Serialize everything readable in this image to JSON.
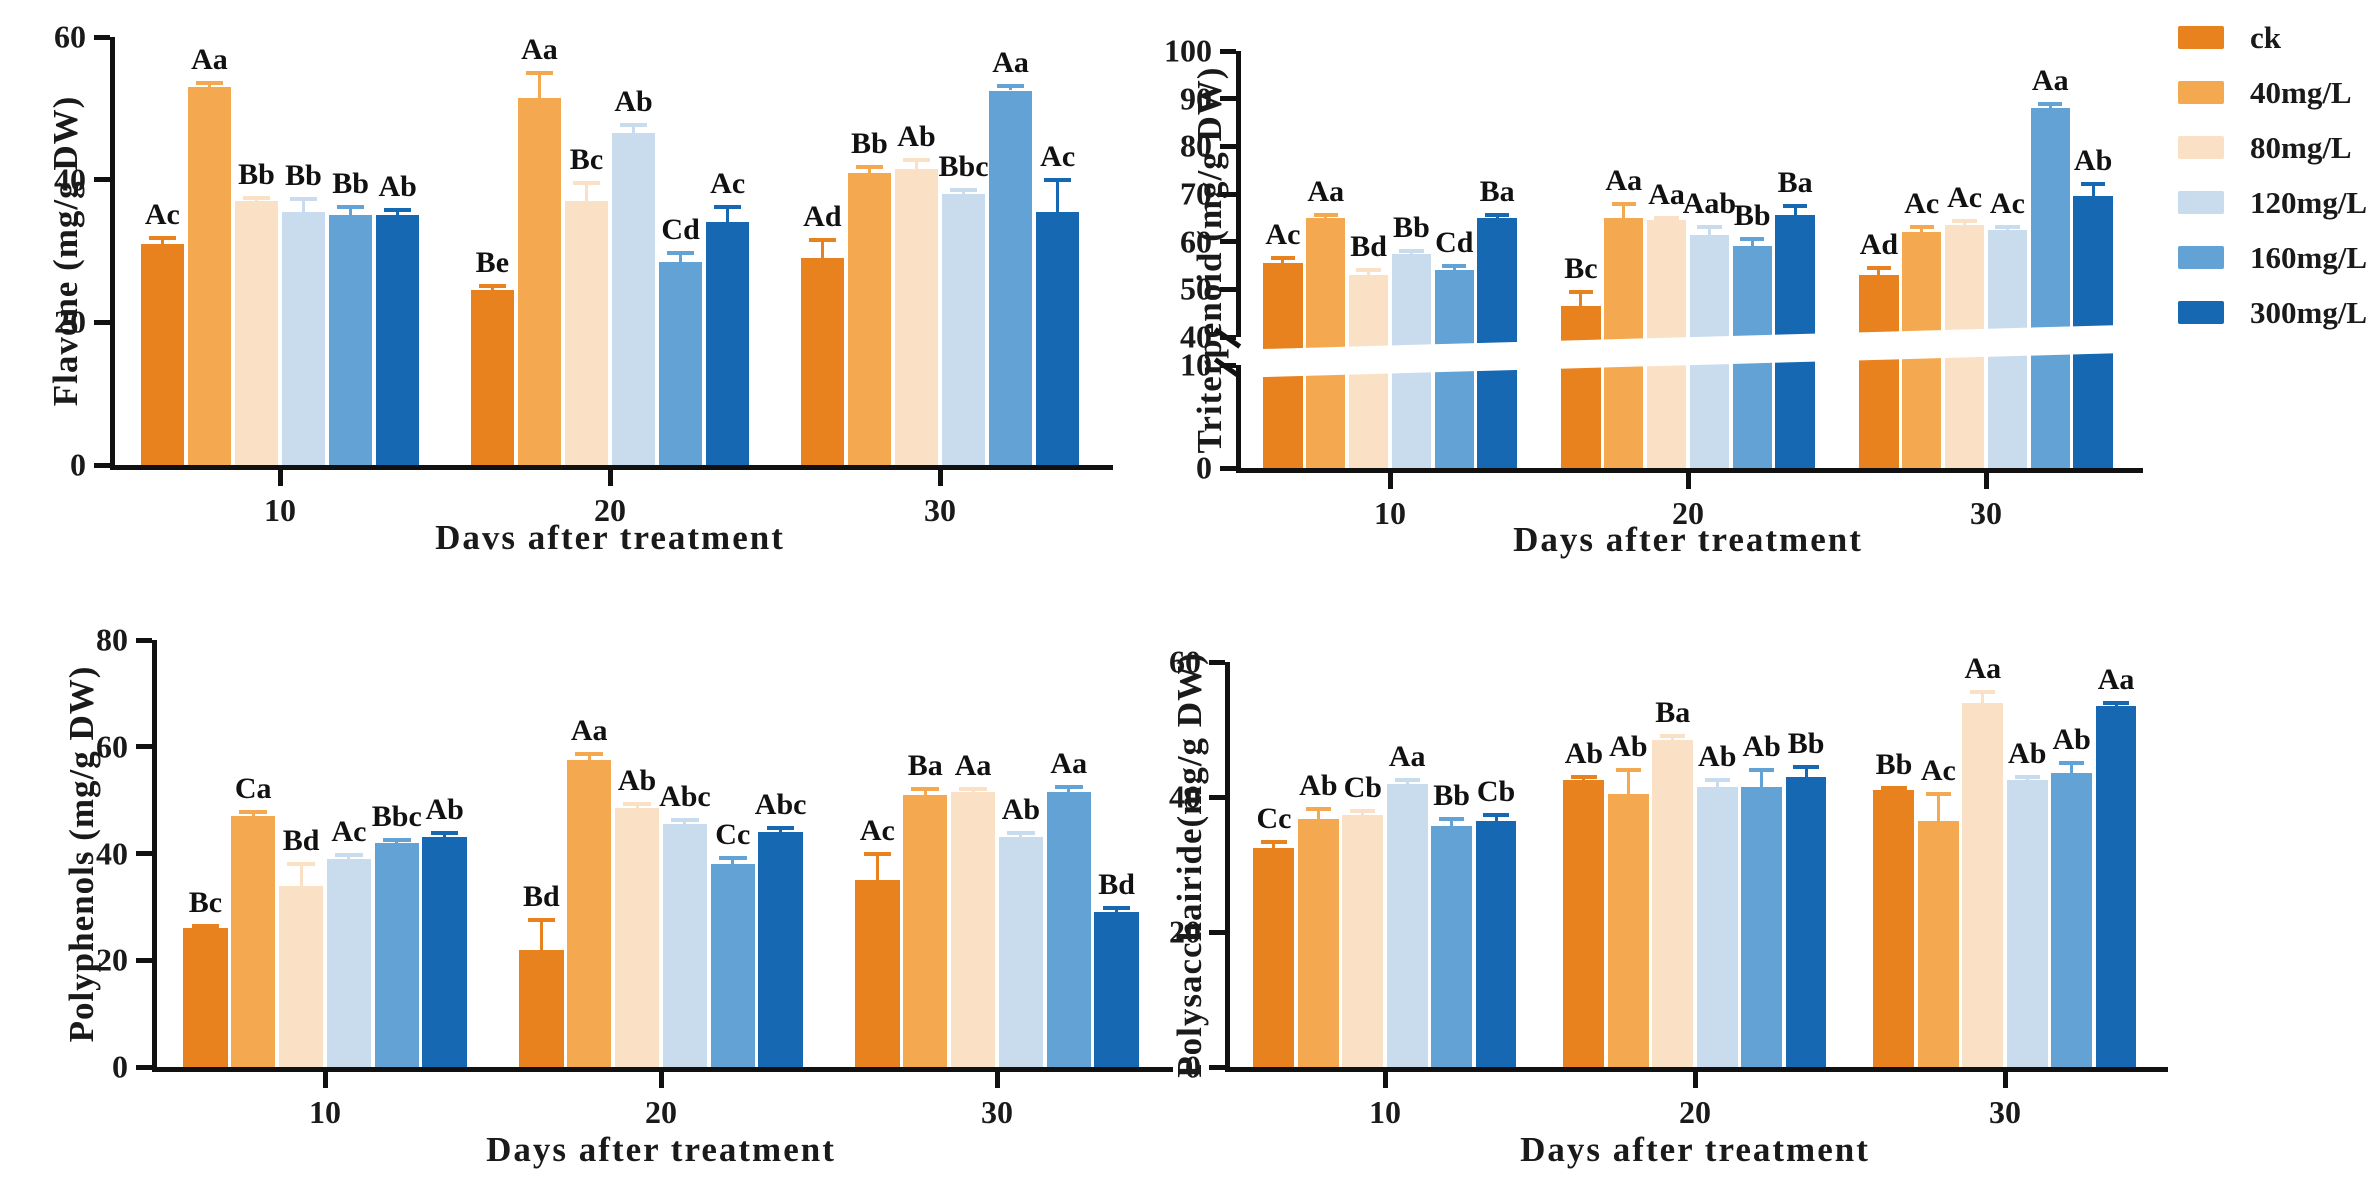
{
  "legend": {
    "position": "top-right",
    "entries": [
      {
        "label": "ck",
        "color": "#E8821F"
      },
      {
        "label": "40mg/L",
        "color": "#F4A950"
      },
      {
        "label": "80mg/L",
        "color": "#FAE1C6"
      },
      {
        "label": "120mg/L",
        "color": "#C9DCEE"
      },
      {
        "label": "160mg/L",
        "color": "#62A2D5"
      },
      {
        "label": "300mg/L",
        "color": "#1568B1"
      }
    ]
  },
  "chart_data": [
    {
      "id": "flavone",
      "type": "bar",
      "title": "",
      "ylabel": "Flavone (mg/g DW)",
      "xlabel": "Davs after treatment",
      "categories": [
        "10",
        "20",
        "30"
      ],
      "ylim": [
        0,
        60
      ],
      "yticks": [
        0,
        20,
        40,
        60
      ],
      "grid": false,
      "legend_position": "figure-right",
      "series": [
        {
          "name": "ck",
          "values": [
            31,
            24.5,
            29
          ],
          "errors": [
            0.8,
            0.6,
            2.5
          ],
          "sig": [
            "Ac",
            "Be",
            "Ad"
          ]
        },
        {
          "name": "40mg/L",
          "values": [
            53,
            51.5,
            41
          ],
          "errors": [
            0.6,
            3.5,
            0.8
          ],
          "sig": [
            "Aa",
            "Aa",
            "Bb"
          ]
        },
        {
          "name": "80mg/L",
          "values": [
            37,
            37,
            41.5
          ],
          "errors": [
            0.5,
            2.5,
            1.2
          ],
          "sig": [
            "Bb",
            "Bc",
            "Ab"
          ]
        },
        {
          "name": "120mg/L",
          "values": [
            35.5,
            46.5,
            38
          ],
          "errors": [
            1.8,
            1.2,
            0.6
          ],
          "sig": [
            "Bb",
            "Ab",
            "Bbc"
          ]
        },
        {
          "name": "160mg/L",
          "values": [
            35,
            28.5,
            52.5
          ],
          "errors": [
            1.2,
            1.2,
            0.6
          ],
          "sig": [
            "Bb",
            "Cd",
            "Aa"
          ]
        },
        {
          "name": "300mg/L",
          "values": [
            35,
            34,
            35.5
          ],
          "errors": [
            0.8,
            2.2,
            4.5
          ],
          "sig": [
            "Ab",
            "Ac",
            "Ac"
          ]
        }
      ]
    },
    {
      "id": "triterpenoid",
      "type": "bar",
      "title": "",
      "ylabel": "Triterpenoid (mg/g DW)",
      "xlabel": "Days after treatment",
      "categories": [
        "10",
        "20",
        "30"
      ],
      "axis_break": {
        "lower_range": [
          0,
          10
        ],
        "upper_range": [
          40,
          100
        ],
        "lower_ticks": [
          0,
          10
        ],
        "upper_ticks": [
          40,
          50,
          60,
          70,
          80,
          90,
          100
        ]
      },
      "grid": false,
      "series": [
        {
          "name": "ck",
          "values": [
            55.5,
            46.5,
            53
          ],
          "errors": [
            1,
            3,
            1.5
          ],
          "sig": [
            "Ac",
            "Bc",
            "Ad"
          ]
        },
        {
          "name": "40mg/L",
          "values": [
            65,
            65,
            62
          ],
          "errors": [
            0.5,
            2.8,
            1
          ],
          "sig": [
            "Aa",
            "Aa",
            "Ac"
          ]
        },
        {
          "name": "80mg/L",
          "values": [
            53,
            64.5,
            63.5
          ],
          "errors": [
            1,
            0.5,
            0.8
          ],
          "sig": [
            "Bd",
            "Aa",
            "Ac"
          ]
        },
        {
          "name": "120mg/L",
          "values": [
            57.5,
            61.5,
            62.5
          ],
          "errors": [
            0.5,
            1.5,
            0.5
          ],
          "sig": [
            "Bb",
            "Aab",
            "Ac"
          ]
        },
        {
          "name": "160mg/L",
          "values": [
            54,
            59,
            88
          ],
          "errors": [
            0.8,
            1.5,
            0.8
          ],
          "sig": [
            "Cd",
            "Bb",
            "Aa"
          ]
        },
        {
          "name": "300mg/L",
          "values": [
            65,
            65.5,
            69.5
          ],
          "errors": [
            0.5,
            2,
            2.5
          ],
          "sig": [
            "Ba",
            "Ba",
            "Ab"
          ]
        }
      ]
    },
    {
      "id": "polyphenols",
      "type": "bar",
      "title": "",
      "ylabel": "Polyphenols (mg/g DW)",
      "xlabel": "Days after treatment",
      "categories": [
        "10",
        "20",
        "30"
      ],
      "ylim": [
        0,
        80
      ],
      "yticks": [
        0,
        20,
        40,
        60,
        80
      ],
      "grid": false,
      "series": [
        {
          "name": "ck",
          "values": [
            26,
            22,
            35
          ],
          "errors": [
            0.5,
            5.5,
            5
          ],
          "sig": [
            "Bc",
            "Bd",
            "Ac"
          ]
        },
        {
          "name": "40mg/L",
          "values": [
            47,
            57.5,
            51
          ],
          "errors": [
            0.8,
            1.2,
            1
          ],
          "sig": [
            "Ca",
            "Aa",
            "Ba"
          ]
        },
        {
          "name": "80mg/L",
          "values": [
            34,
            48.5,
            51.5
          ],
          "errors": [
            4,
            0.8,
            0.5
          ],
          "sig": [
            "Bd",
            "Ab",
            "Aa"
          ]
        },
        {
          "name": "120mg/L",
          "values": [
            39,
            45.5,
            43
          ],
          "errors": [
            0.8,
            0.8,
            0.8
          ],
          "sig": [
            "Ac",
            "Abc",
            "Ab"
          ]
        },
        {
          "name": "160mg/L",
          "values": [
            42,
            38,
            51.5
          ],
          "errors": [
            0.5,
            1.2,
            1
          ],
          "sig": [
            "Bbc",
            "Cc",
            "Aa"
          ]
        },
        {
          "name": "300mg/L",
          "values": [
            43,
            44,
            29
          ],
          "errors": [
            0.8,
            0.8,
            0.8
          ],
          "sig": [
            "Ab",
            "Abc",
            "Bd"
          ]
        }
      ]
    },
    {
      "id": "polysaccharide",
      "type": "bar",
      "title": "",
      "ylabel": "Polysacchairide(mg/g DW)",
      "xlabel": "Days after treatment",
      "categories": [
        "10",
        "20",
        "30"
      ],
      "ylim": [
        0,
        60
      ],
      "yticks": [
        0,
        20,
        40,
        60
      ],
      "grid": false,
      "series": [
        {
          "name": "ck",
          "values": [
            32.5,
            42.5,
            41
          ],
          "errors": [
            0.8,
            0.4,
            0.4
          ],
          "sig": [
            "Cc",
            "Ab",
            "Bb"
          ]
        },
        {
          "name": "40mg/L",
          "values": [
            36.7,
            40.5,
            36.5
          ],
          "errors": [
            1.5,
            3.5,
            4
          ],
          "sig": [
            "Ab",
            "Ab",
            "Ac"
          ]
        },
        {
          "name": "80mg/L",
          "values": [
            37.4,
            48.5,
            54
          ],
          "errors": [
            0.5,
            0.5,
            1.5
          ],
          "sig": [
            "Cb",
            "Ba",
            "Aa"
          ]
        },
        {
          "name": "120mg/L",
          "values": [
            42,
            41.5,
            42.5
          ],
          "errors": [
            0.5,
            1,
            0.5
          ],
          "sig": [
            "Aa",
            "Ab",
            "Ab"
          ]
        },
        {
          "name": "160mg/L",
          "values": [
            35.7,
            41.5,
            43.5
          ],
          "errors": [
            1,
            2.5,
            1.5
          ],
          "sig": [
            "Bb",
            "Ab",
            "Ab"
          ]
        },
        {
          "name": "300mg/L",
          "values": [
            36.4,
            43,
            53.5
          ],
          "errors": [
            1,
            1.5,
            0.5
          ],
          "sig": [
            "Cb",
            "Bb",
            "Aa"
          ]
        }
      ]
    }
  ]
}
